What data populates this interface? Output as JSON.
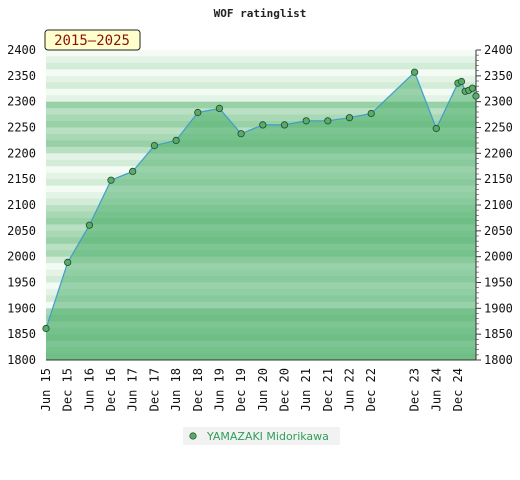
{
  "chart_data": {
    "type": "area",
    "title": "WOF ratinglist",
    "period_label": "2015–2025",
    "ylim": [
      1800,
      2400
    ],
    "yticks": [
      1800,
      1850,
      1900,
      1950,
      2000,
      2050,
      2100,
      2150,
      2200,
      2250,
      2300,
      2350,
      2400
    ],
    "xticks": [
      "Jun 15",
      "Dec 15",
      "Jun 16",
      "Dec 16",
      "Jun 17",
      "Dec 17",
      "Jun 18",
      "Dec 18",
      "Jun 19",
      "Dec 19",
      "Jun 20",
      "Dec 20",
      "Jun 21",
      "Dec 21",
      "Jun 22",
      "Dec 22",
      "Dec 23",
      "Jun 24",
      "Dec 24"
    ],
    "grid": false,
    "legend_position": "bottom",
    "series": [
      {
        "name": "YAMAZAKI Midorikawa",
        "color": "#3d9dcc",
        "marker_color": "#5aaa6a",
        "points": [
          {
            "x": "2015-06",
            "y": 1861
          },
          {
            "x": "2015-12",
            "y": 1989
          },
          {
            "x": "2016-06",
            "y": 2061
          },
          {
            "x": "2016-12",
            "y": 2148
          },
          {
            "x": "2017-06",
            "y": 2165
          },
          {
            "x": "2017-12",
            "y": 2215
          },
          {
            "x": "2018-06",
            "y": 2225
          },
          {
            "x": "2018-12",
            "y": 2279
          },
          {
            "x": "2019-06",
            "y": 2287
          },
          {
            "x": "2019-12",
            "y": 2238
          },
          {
            "x": "2020-06",
            "y": 2255
          },
          {
            "x": "2020-12",
            "y": 2255
          },
          {
            "x": "2021-06",
            "y": 2263
          },
          {
            "x": "2021-12",
            "y": 2263
          },
          {
            "x": "2022-06",
            "y": 2269
          },
          {
            "x": "2022-12",
            "y": 2277
          },
          {
            "x": "2023-12",
            "y": 2357
          },
          {
            "x": "2024-06",
            "y": 2248
          },
          {
            "x": "2024-12",
            "y": 2336
          },
          {
            "x": "2025-01",
            "y": 2339
          },
          {
            "x": "2025-02",
            "y": 2320
          },
          {
            "x": "2025-03",
            "y": 2322
          },
          {
            "x": "2025-04",
            "y": 2326
          },
          {
            "x": "2025-05",
            "y": 2311
          }
        ]
      }
    ]
  },
  "colors": {
    "band_light": [
      "#f4fbf5",
      "#e3f3e6",
      "#d2ecd7"
    ],
    "band_dark": [
      "#b9e0c3",
      "#a8d9b4",
      "#98d1a6"
    ],
    "fill": "#4caf6c",
    "line": "#3d9dcc",
    "period_box_bg": "#ffffcc",
    "period_box_border": "#222222"
  }
}
